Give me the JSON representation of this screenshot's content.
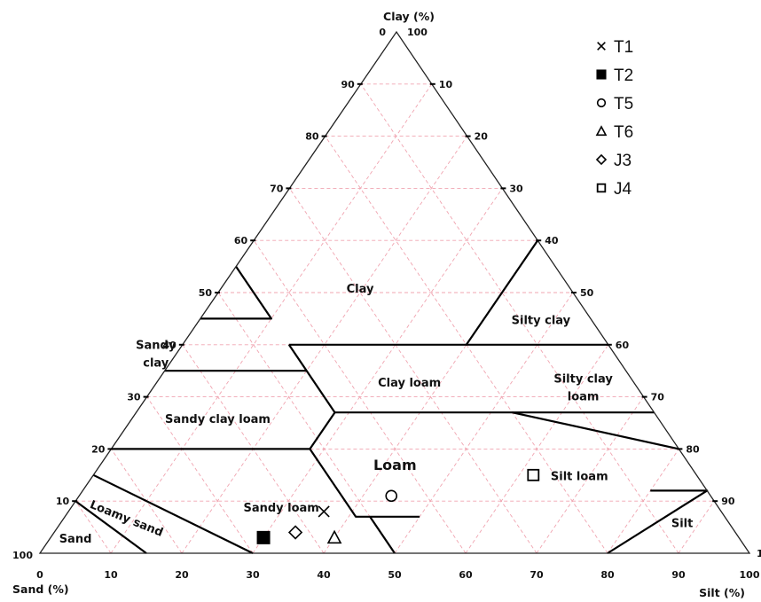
{
  "chart_data": {
    "type": "scatter",
    "subtype": "ternary soil texture triangle",
    "axes": {
      "clay": {
        "label": "Clay (%)",
        "range": [
          0,
          100
        ]
      },
      "sand": {
        "label": "Sand (%)",
        "range": [
          0,
          100
        ]
      },
      "silt": {
        "label": "Silt (%)",
        "range": [
          0,
          100
        ]
      }
    },
    "ticks": [
      0,
      10,
      20,
      30,
      40,
      50,
      60,
      70,
      80,
      90,
      100
    ],
    "grid": true,
    "grid_style": "dashed pink",
    "legend_position": "top-right",
    "regions": [
      {
        "name": "Clay",
        "lines": [
          "Clay"
        ],
        "size": "normal"
      },
      {
        "name": "Sandy clay",
        "lines": [
          "Sandy",
          "clay"
        ],
        "size": "normal"
      },
      {
        "name": "Silty clay",
        "lines": [
          "Silty clay"
        ],
        "size": "normal"
      },
      {
        "name": "Clay loam",
        "lines": [
          "Clay loam"
        ],
        "size": "normal"
      },
      {
        "name": "Silty clay loam",
        "lines": [
          "Silty clay",
          "loam"
        ],
        "size": "normal"
      },
      {
        "name": "Sandy clay loam",
        "lines": [
          "Sandy clay loam"
        ],
        "size": "normal"
      },
      {
        "name": "Loam",
        "lines": [
          "Loam"
        ],
        "size": "big"
      },
      {
        "name": "Silt loam",
        "lines": [
          "Silt loam"
        ],
        "size": "normal"
      },
      {
        "name": "Sandy loam",
        "lines": [
          "Sandy loam"
        ],
        "size": "normal"
      },
      {
        "name": "Loamy sand",
        "lines": [
          "Loamy sand"
        ],
        "size": "normal"
      },
      {
        "name": "Sand",
        "lines": [
          "Sand"
        ],
        "size": "normal"
      },
      {
        "name": "Silt",
        "lines": [
          "Silt"
        ],
        "size": "normal"
      }
    ],
    "series": [
      {
        "name": "T1",
        "marker": "x",
        "sand": 56,
        "silt": 36,
        "clay": 8
      },
      {
        "name": "T2",
        "marker": "filled-square",
        "sand": 67,
        "silt": 30,
        "clay": 3
      },
      {
        "name": "T5",
        "marker": "circle",
        "sand": 45,
        "silt": 44,
        "clay": 11
      },
      {
        "name": "T6",
        "marker": "triangle",
        "sand": 57,
        "silt": 40,
        "clay": 3
      },
      {
        "name": "J3",
        "marker": "diamond",
        "sand": 62,
        "silt": 34,
        "clay": 4
      },
      {
        "name": "J4",
        "marker": "square",
        "sand": 23,
        "silt": 62,
        "clay": 15
      }
    ]
  }
}
